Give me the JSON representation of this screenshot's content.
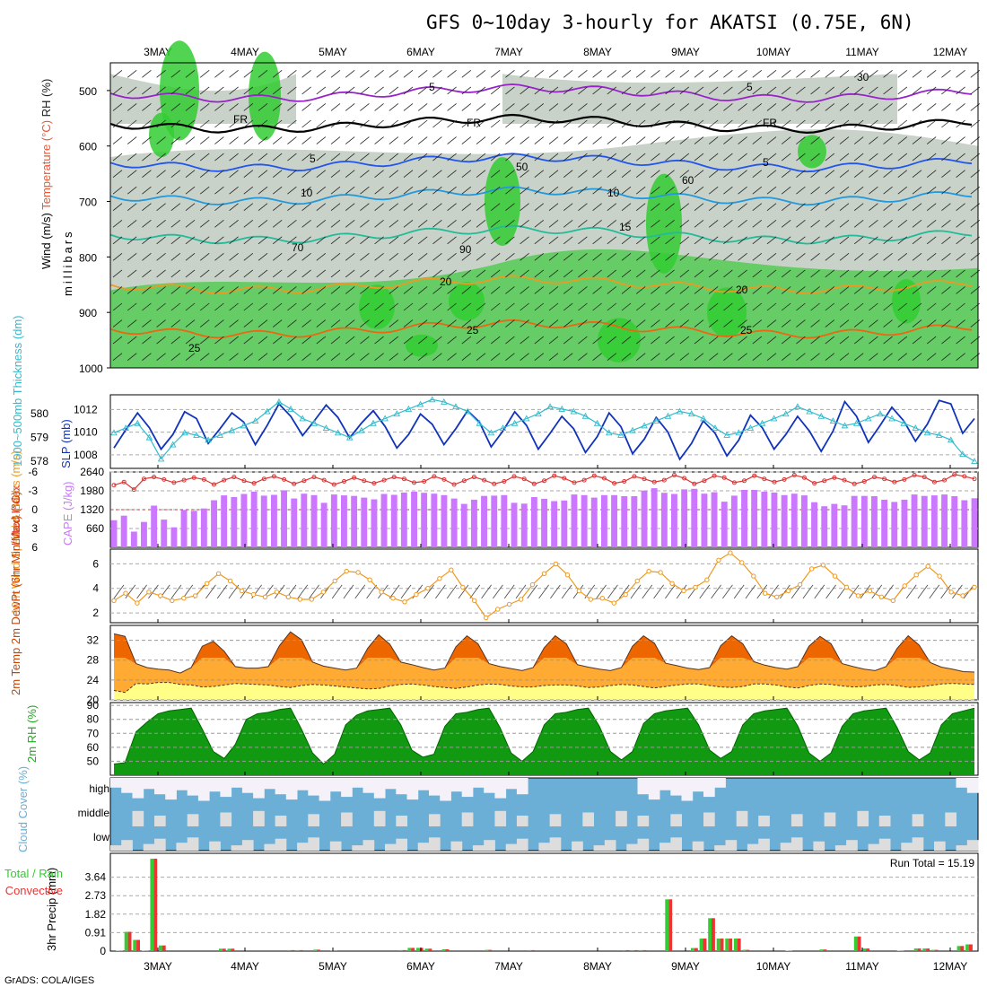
{
  "title": "GFS 0~10day 3-hourly for AKATSI (0.75E, 6N)",
  "credit": "GrADS: COLA/IGES",
  "run_total_label": "Run Total = 15.19",
  "colors": {
    "rh_green": "#33cc33",
    "rh_gray": "#c8d2c8",
    "freezing": "#000000",
    "temp_blue": "#2255ee",
    "temp_cyan": "#2299dd",
    "temp_teal": "#22bb99",
    "temp_orange": "#ee9922",
    "temp_dark_orange": "#ee6611",
    "temp_magenta": "#dd2288",
    "isotherm_violet": "#9922cc",
    "slp_line": "#1133bb",
    "thickness_line": "#33bbcc",
    "lifted_index": "#dd3333",
    "cape_bar": "#cc77ff",
    "wind_speed": "#ee9922",
    "temp_max_fill": "#ee6600",
    "temp_mid_fill": "#ffaa33",
    "dew_fill": "#ffff88",
    "cloud_fill": "#6baed6",
    "cloud_blank": "#dddddd",
    "precip_total": "#33cc33",
    "precip_conv": "#ee3333"
  },
  "chart_data": [
    {
      "type": "heatmap",
      "name_printed": "",
      "ylabel_parts": [
        "Wind (m/s)",
        "Temperature (°C)",
        "RH (%)"
      ],
      "ylabel_units": "millibars",
      "x": [
        "3MAY",
        "4MAY",
        "5MAY",
        "6MAY",
        "7MAY",
        "8MAY",
        "9MAY",
        "10MAY",
        "11MAY",
        "12MAY"
      ],
      "y_ticks": [
        500,
        600,
        700,
        800,
        900,
        1000
      ],
      "ylim": [
        1000,
        450
      ],
      "contour_labels": [
        {
          "text": "FR",
          "level": 0
        },
        {
          "text": "5",
          "level": 5
        },
        {
          "text": "10",
          "level": 10
        },
        {
          "text": "15",
          "level": 15
        },
        {
          "text": "20",
          "level": 20
        },
        {
          "text": "25",
          "level": 25
        }
      ],
      "rh_labels": [
        "30",
        "50",
        "60",
        "70",
        "90"
      ],
      "isotherms_mb": {
        "-5": 505,
        "0": 560,
        "5": 630,
        "10": 690,
        "15": 760,
        "20": 850,
        "25": 930
      }
    },
    {
      "type": "line",
      "ylabel_left": "1000~500mb Thickness (dm)",
      "ylabel_right": "SLP (mb)",
      "thickness_ticks": [
        578,
        579,
        580
      ],
      "slp_ticks": [
        1008,
        1010,
        1012
      ],
      "thickness_ylim": [
        577.7,
        580.8
      ],
      "slp_ylim": [
        1006.8,
        1013.3
      ],
      "series": [
        {
          "name": "SLP",
          "values": [
            1008.6,
            1010.2,
            1011.7,
            1010.4,
            1008.5,
            1009.8,
            1011.8,
            1011.2,
            1009.0,
            1010.3,
            1011.7,
            1010.9,
            1008.9,
            1010.6,
            1012.5,
            1011.4,
            1009.7,
            1011.0,
            1012.4,
            1011.3,
            1009.5,
            1010.8,
            1011.9,
            1010.5,
            1008.6,
            1009.8,
            1011.6,
            1010.7,
            1008.9,
            1010.3,
            1011.9,
            1010.9,
            1008.7,
            1010.1,
            1011.8,
            1010.6,
            1008.5,
            1009.9,
            1011.4,
            1010.3,
            1008.2,
            1009.6,
            1011.7,
            1010.5,
            1008.1,
            1009.4,
            1011.3,
            1010.0,
            1007.6,
            1009.0,
            1011.0,
            1009.9,
            1007.9,
            1009.3,
            1011.5,
            1010.4,
            1008.5,
            1009.8,
            1011.4,
            1010.1,
            1008.3,
            1010.1,
            1012.7,
            1011.4,
            1009.1,
            1010.6,
            1012.2,
            1011.0,
            1009.2,
            1010.7,
            1012.8,
            1012.5,
            1009.9,
            1011.2
          ]
        },
        {
          "name": "Thickness",
          "values": [
            579.2,
            579.4,
            579.6,
            579.0,
            578.1,
            578.7,
            579.2,
            579.1,
            578.9,
            579.1,
            579.3,
            579.5,
            579.7,
            580.1,
            580.5,
            580.2,
            579.8,
            579.6,
            579.4,
            579.2,
            579.0,
            579.3,
            579.6,
            579.8,
            580.0,
            580.2,
            580.4,
            580.6,
            580.5,
            580.3,
            580.1,
            579.6,
            579.2,
            579.4,
            579.6,
            579.8,
            580.0,
            580.3,
            580.2,
            580.1,
            579.9,
            579.6,
            579.2,
            579.1,
            579.3,
            579.5,
            579.7,
            579.9,
            580.1,
            580.0,
            579.8,
            579.4,
            579.1,
            579.2,
            579.4,
            579.6,
            579.8,
            580.0,
            580.3,
            580.1,
            579.9,
            579.7,
            579.5,
            579.6,
            579.8,
            580.0,
            579.8,
            579.6,
            579.4,
            579.2,
            579.1,
            578.9,
            578.3,
            578.0
          ]
        }
      ]
    },
    {
      "type": "bar",
      "ylabel_left": "Lifted Index",
      "ylabel_right": "CAPE (J/kg)",
      "li_ticks": [
        "-6",
        "-3",
        "0",
        "3",
        "6"
      ],
      "cape_ticks": [
        660,
        1320,
        1980,
        2640
      ],
      "cape_ylim": [
        0,
        2640
      ],
      "series": [
        {
          "name": "CAPE",
          "values": [
            950,
            1110,
            550,
            890,
            1460,
            970,
            700,
            1310,
            1280,
            1360,
            1650,
            1820,
            1760,
            1870,
            1950,
            1810,
            1840,
            2000,
            1710,
            1880,
            1830,
            1560,
            1850,
            1820,
            1800,
            1740,
            1680,
            1870,
            1840,
            1920,
            1950,
            1910,
            1880,
            1830,
            1710,
            1520,
            1670,
            1800,
            1810,
            1830,
            1560,
            1530,
            1760,
            1700,
            1620,
            1640,
            1850,
            1830,
            1740,
            1830,
            1830,
            1790,
            1790,
            1990,
            2070,
            1910,
            1870,
            2030,
            2050,
            1880,
            1930,
            1600,
            1810,
            2010,
            2010,
            1950,
            1920,
            1830,
            1880,
            1820,
            1580,
            1440,
            1520,
            1470,
            1800,
            1800,
            1790,
            1670,
            1590,
            1670,
            1850,
            1800,
            1820,
            1850,
            1790,
            1650,
            1720
          ]
        },
        {
          "name": "Lifted Index",
          "values": [
            -3.9,
            -4.4,
            -3.2,
            -4.9,
            -5.2,
            -4.8,
            -4.3,
            -4.7,
            -5.1,
            -4.8,
            -4.0,
            -4.7,
            -5.2,
            -4.6,
            -4.2,
            -4.9,
            -5.3,
            -4.8,
            -4.1,
            -4.6,
            -5.2,
            -4.7,
            -4.0,
            -4.5,
            -5.1,
            -4.6,
            -4.2,
            -4.7,
            -5.2,
            -4.9,
            -4.3,
            -4.5,
            -5.3,
            -4.8,
            -4.0,
            -4.6,
            -5.2,
            -4.7,
            -4.1,
            -4.5,
            -5.3,
            -4.9,
            -4.1,
            -4.6,
            -5.4,
            -5.0,
            -4.3,
            -4.7,
            -5.4,
            -5.0,
            -4.2,
            -4.5,
            -5.3,
            -4.9,
            -4.4,
            -4.7,
            -5.5,
            -5.0,
            -4.1,
            -4.6,
            -5.4,
            -5.1,
            -4.3,
            -4.6,
            -5.4,
            -4.9,
            -4.4,
            -4.8,
            -5.5,
            -5.1,
            -4.2,
            -4.6,
            -5.1,
            -4.7,
            -4.1,
            -4.5,
            -5.2,
            -4.9,
            -4.4,
            -4.8,
            -5.5,
            -5.2,
            -4.4,
            -4.7,
            -5.6,
            -5.3,
            -4.9
          ]
        }
      ]
    },
    {
      "type": "line",
      "ylabel": "10m Wind Speed & Barbs (m/s)",
      "y_ticks": [
        2,
        4,
        6
      ],
      "ylim": [
        1.2,
        7.2
      ],
      "series": [
        {
          "name": "Wind Speed",
          "values": [
            3.0,
            3.6,
            2.8,
            3.7,
            3.4,
            3.0,
            3.2,
            3.4,
            4.4,
            5.2,
            4.6,
            3.8,
            3.5,
            3.3,
            3.7,
            3.3,
            3.1,
            3.1,
            3.7,
            4.6,
            5.4,
            5.3,
            4.7,
            3.7,
            3.2,
            2.9,
            3.5,
            4.0,
            4.8,
            5.5,
            4.1,
            3.0,
            1.6,
            2.3,
            2.7,
            3.1,
            4.3,
            5.2,
            6.0,
            5.1,
            3.8,
            3.1,
            3.2,
            2.8,
            3.5,
            4.6,
            5.4,
            5.3,
            4.4,
            3.8,
            4.1,
            4.7,
            6.3,
            6.9,
            6.1,
            5.0,
            3.6,
            3.3,
            3.8,
            4.3,
            5.6,
            5.9,
            5.0,
            4.1,
            3.4,
            3.8,
            3.3,
            3.0,
            4.2,
            5.1,
            5.8,
            5.0,
            3.7,
            3.4,
            4.1
          ]
        }
      ]
    },
    {
      "type": "area",
      "ylabel": "2m Temp 2m DewPt (6hr Min/Max) (°C)",
      "y_ticks": [
        20,
        24,
        28,
        32
      ],
      "ylim": [
        20,
        35
      ],
      "series": [
        {
          "name": "2m Temp",
          "values": [
            33.3,
            32.8,
            27.3,
            26.5,
            26.2,
            26.0,
            25.4,
            26.5,
            30.8,
            31.8,
            29.8,
            26.7,
            26.4,
            26.4,
            26.7,
            30.9,
            33.7,
            32.1,
            27.6,
            26.8,
            26.4,
            26.0,
            26.4,
            30.4,
            33.1,
            31.2,
            27.6,
            27.1,
            26.5,
            26.0,
            26.4,
            30.7,
            32.9,
            31.3,
            27.3,
            26.7,
            26.3,
            25.9,
            26.5,
            30.5,
            32.9,
            31.3,
            27.1,
            26.6,
            26.2,
            25.9,
            26.5,
            30.8,
            32.9,
            31.4,
            27.4,
            26.9,
            26.4,
            26.1,
            26.5,
            30.9,
            32.9,
            31.3,
            27.7,
            27.0,
            26.5,
            26.2,
            26.7,
            30.8,
            32.8,
            31.3,
            27.3,
            26.7,
            26.2,
            25.9,
            26.7,
            30.4,
            32.9,
            31.0,
            27.5,
            26.6,
            26.2,
            25.7,
            25.6
          ]
        },
        {
          "name": "2m DewPt",
          "values": [
            21.9,
            21.5,
            23.3,
            23.2,
            23.5,
            23.5,
            23.1,
            23.0,
            22.6,
            22.7,
            23.0,
            23.3,
            23.2,
            23.1,
            23.0,
            22.7,
            22.5,
            22.9,
            23.1,
            23.0,
            22.8,
            22.6,
            22.4,
            22.2,
            22.3,
            22.8,
            23.1,
            23.2,
            23.0,
            22.7,
            22.5,
            22.3,
            22.6,
            23.0,
            23.2,
            23.1,
            22.8,
            22.6,
            22.6,
            22.9,
            23.0,
            23.0,
            22.8,
            22.5,
            22.6,
            22.9,
            23.1,
            23.0,
            22.7,
            22.4,
            22.7,
            23.0,
            23.2,
            23.2,
            22.9,
            22.6,
            22.5,
            22.7,
            23.2,
            23.2,
            23.0,
            22.6,
            22.4,
            22.9,
            23.2,
            23.1,
            22.8,
            22.6,
            22.7,
            23.0,
            23.1,
            22.9,
            22.5,
            22.6,
            22.9,
            23.2,
            23.3,
            23.2,
            23.1
          ]
        }
      ]
    },
    {
      "type": "area",
      "ylabel": "2m RH (%)",
      "y_ticks": [
        50,
        60,
        70,
        80,
        90
      ],
      "ylim": [
        40,
        92
      ],
      "series": [
        {
          "name": "2m RH",
          "values": [
            48,
            49,
            71,
            78,
            84,
            86,
            87,
            88,
            73,
            57,
            52,
            62,
            80,
            84,
            85,
            87,
            88,
            73,
            56,
            48,
            55,
            76,
            83,
            86,
            87,
            88,
            76,
            58,
            53,
            55,
            75,
            84,
            85,
            87,
            88,
            74,
            56,
            50,
            57,
            76,
            84,
            85,
            87,
            88,
            75,
            57,
            51,
            57,
            77,
            84,
            86,
            87,
            88,
            76,
            58,
            52,
            57,
            76,
            84,
            86,
            87,
            88,
            75,
            56,
            50,
            56,
            75,
            84,
            86,
            87,
            88,
            74,
            57,
            51,
            56,
            76,
            84,
            86,
            88
          ]
        }
      ]
    },
    {
      "type": "heatmap",
      "ylabel": "Cloud Cover (%)",
      "rows": [
        "high",
        "middle",
        "low"
      ]
    },
    {
      "type": "bar",
      "ylabel": "3hr Precip (mm)",
      "legend": [
        "Total / Rain",
        "Convective"
      ],
      "y_ticks": [
        0,
        0.91,
        1.82,
        2.73,
        3.64
      ],
      "ylim": [
        0,
        4.55
      ],
      "series": [
        {
          "name": "Total",
          "values": [
            0.02,
            0.95,
            0.55,
            0.02,
            4.55,
            0.28,
            0,
            0,
            0,
            0,
            0,
            0,
            0.12,
            0.12,
            0,
            0,
            0,
            0,
            0,
            0,
            0.05,
            0.05,
            0,
            0.07,
            0,
            0.03,
            0,
            0,
            0,
            0,
            0,
            0,
            0,
            0.05,
            0.16,
            0.16,
            0.12,
            0,
            0.09,
            0,
            0,
            0,
            0,
            0.06,
            0,
            0,
            0,
            0,
            0.05,
            0,
            0,
            0,
            0,
            0,
            0,
            0,
            0,
            0,
            0,
            0.05,
            0.05,
            0.05,
            0,
            0,
            2.55,
            0,
            0,
            0.15,
            0.62,
            1.62,
            0.62,
            0.62,
            0.62,
            0.06,
            0,
            0,
            0,
            0,
            0.02,
            0,
            0,
            0,
            0.08,
            0,
            0,
            0,
            0.72,
            0.13,
            0,
            0,
            0,
            0.02,
            0,
            0.13,
            0.13,
            0.06,
            0,
            0,
            0.25,
            0.33
          ]
        }
      ]
    }
  ]
}
